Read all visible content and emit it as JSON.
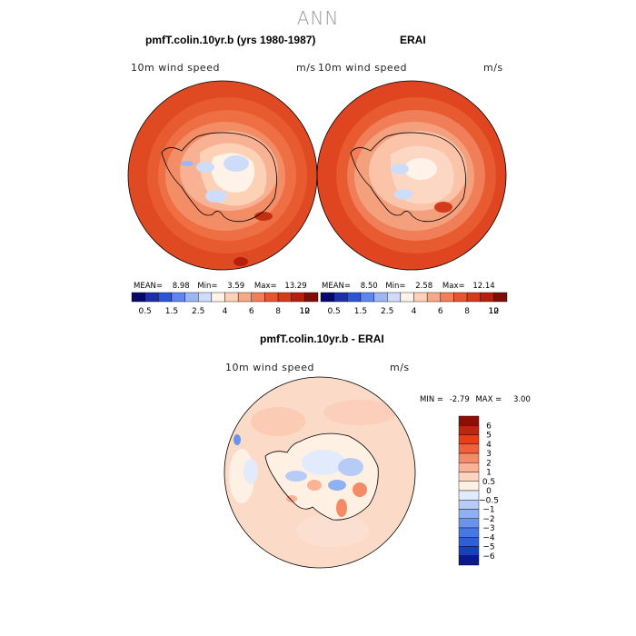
{
  "main_title": "ANN",
  "panel1": {
    "title": "pmfT.colin.10yr.b (yrs 1980-1987)",
    "variable": "10m wind speed",
    "units": "m/s",
    "stats": {
      "mean_label": "MEAN=",
      "mean": "8.98",
      "min_label": "Min=",
      "min": "3.59",
      "max_label": "Max=",
      "max": "13.29"
    }
  },
  "panel2": {
    "title": "ERAI",
    "variable": "10m wind speed",
    "units": "m/s",
    "stats": {
      "mean_label": "MEAN=",
      "mean": "8.50",
      "min_label": "Min=",
      "min": "2.58",
      "max_label": "Max=",
      "max": "12.14"
    }
  },
  "panel3": {
    "title": "pmfT.colin.10yr.b - ERAI",
    "variable": "10m wind speed",
    "units": "m/s",
    "stats": {
      "min_label": "MIN =",
      "min": "-2.79",
      "max_label": "MAX =",
      "max": "3.00"
    }
  },
  "colorbar_top": {
    "colors": [
      "#08086b",
      "#1e2ea8",
      "#2b55d6",
      "#5f86ee",
      "#9bb5f5",
      "#cddcf8",
      "#fff2e8",
      "#fcd2b7",
      "#f7a887",
      "#f07e58",
      "#e65432",
      "#d63a1d",
      "#b5200e",
      "#7d0d05"
    ],
    "tick_labels": [
      "0.5",
      "1.5",
      "2.5",
      "4",
      "6",
      "8",
      "10",
      "12"
    ]
  },
  "colorbar_diff": {
    "colors": [
      "#8b0f05",
      "#c0240c",
      "#e2401b",
      "#f0603b",
      "#f58a66",
      "#f9b396",
      "#fcd4c0",
      "#fff0e4",
      "#e1ebfb",
      "#b6ccf6",
      "#8fb0f2",
      "#6a93ec",
      "#4777e4",
      "#2d5fd8",
      "#1a3fbd",
      "#0a1a8e"
    ],
    "tick_labels": [
      "6",
      "5",
      "4",
      "3",
      "2",
      "1",
      "0.5",
      "0",
      "−0.5",
      "−1",
      "−2",
      "−3",
      "−4",
      "−5",
      "−6"
    ]
  }
}
